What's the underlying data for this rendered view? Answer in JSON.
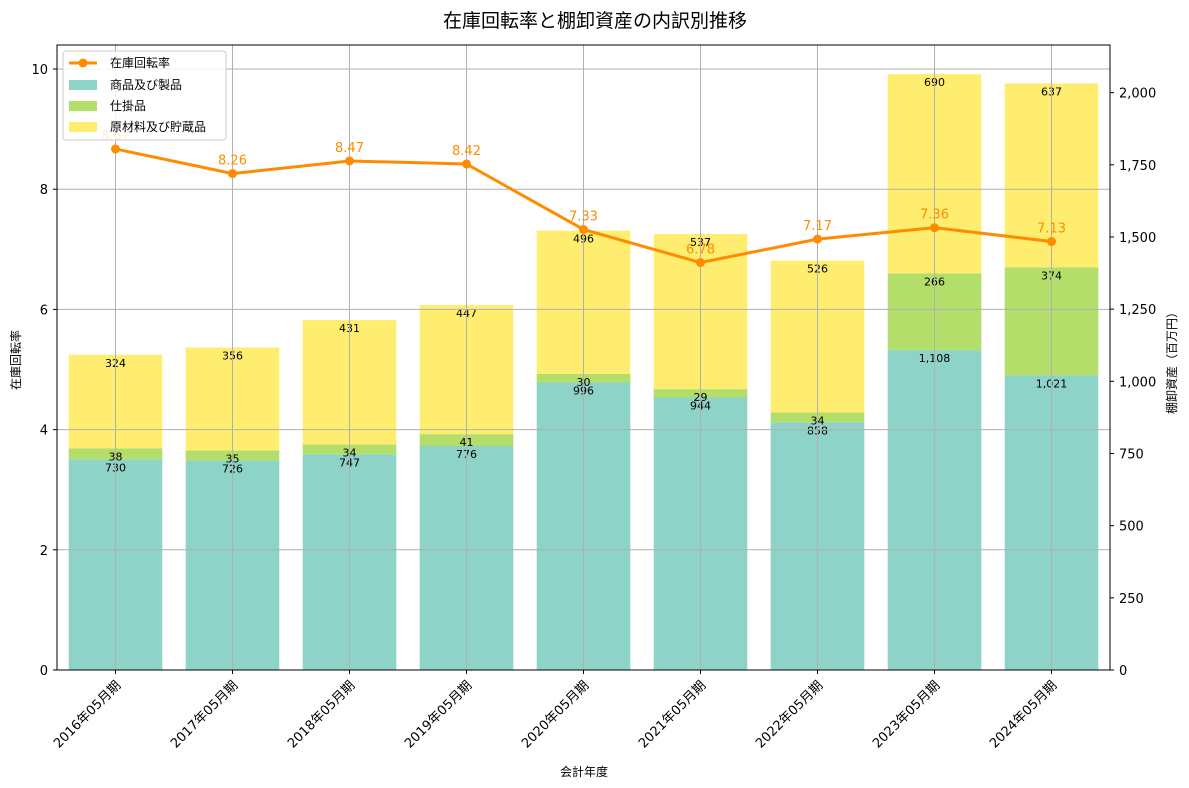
{
  "chart_data": {
    "type": "bar",
    "title": "在庫回転率と棚卸資産の内訳別推移",
    "xlabel": "会計年度",
    "ylabel_left": "在庫回転率",
    "ylabel_right": "棚卸資産（百万円）",
    "categories": [
      "2016年05月期",
      "2017年05月期",
      "2018年05月期",
      "2019年05月期",
      "2020年05月期",
      "2021年05月期",
      "2022年05月期",
      "2023年05月期",
      "2024年05月期"
    ],
    "stacked_series": [
      {
        "name": "商品及び製品",
        "color": "#8dd3c7",
        "values": [
          730,
          726,
          747,
          776,
          996,
          944,
          858,
          1108,
          1021
        ],
        "labels": [
          "730",
          "726",
          "747",
          "776",
          "996",
          "944",
          "858",
          "1,108",
          "1,021"
        ]
      },
      {
        "name": "仕掛品",
        "color": "#b3de69",
        "values": [
          38,
          35,
          34,
          41,
          30,
          29,
          34,
          266,
          374
        ],
        "labels": [
          "38",
          "35",
          "34",
          "41",
          "30",
          "29",
          "34",
          "266",
          "374"
        ]
      },
      {
        "name": "原材料及び貯蔵品",
        "color": "#ffed6f",
        "values": [
          324,
          356,
          431,
          447,
          496,
          537,
          526,
          690,
          637
        ],
        "labels": [
          "324",
          "356",
          "431",
          "447",
          "496",
          "537",
          "526",
          "690",
          "637"
        ]
      }
    ],
    "line_series": {
      "name": "在庫回転率",
      "color": "#ff8c00",
      "values": [
        8.67,
        8.26,
        8.47,
        8.42,
        7.33,
        6.78,
        7.17,
        7.36,
        7.13
      ],
      "labels": [
        "8.67",
        "8.26",
        "8.47",
        "8.42",
        "7.33",
        "6.78",
        "7.17",
        "7.36",
        "7.13"
      ]
    },
    "left_axis": {
      "ylim": [
        0,
        10.4
      ],
      "ticks": [
        0,
        2,
        4,
        6,
        8,
        10
      ],
      "tick_labels": [
        "0",
        "2",
        "4",
        "6",
        "8",
        "10"
      ]
    },
    "right_axis": {
      "ylim": [
        0,
        2165
      ],
      "ticks": [
        0,
        250,
        500,
        750,
        1000,
        1250,
        1500,
        1750,
        2000
      ],
      "tick_labels": [
        "0",
        "250",
        "500",
        "750",
        "1,000",
        "1,250",
        "1,500",
        "1,750",
        "2,000"
      ]
    },
    "grid": true,
    "legend_position": "top-left"
  }
}
